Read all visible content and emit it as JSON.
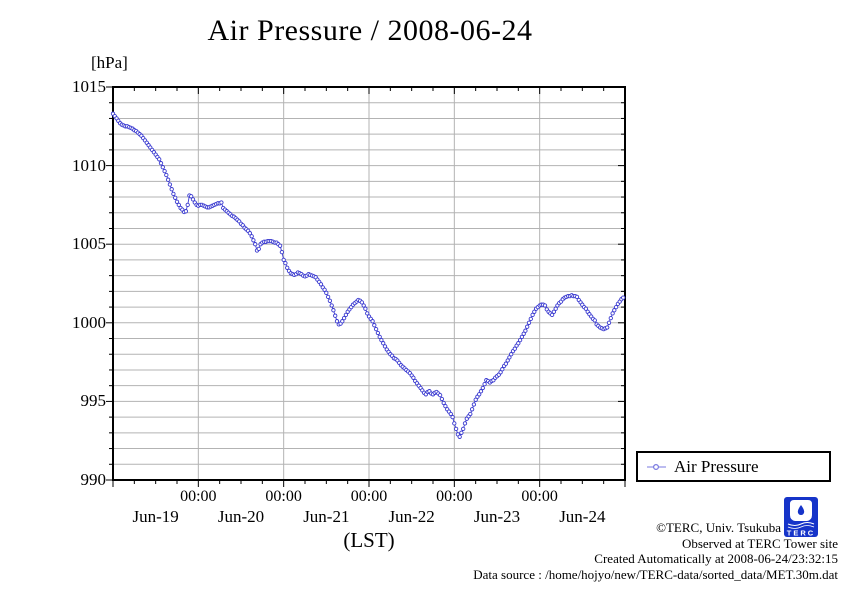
{
  "title": "Air Pressure / 2008-06-24",
  "y_unit_label": "[hPa]",
  "x_axis_label": "(LST)",
  "legend": {
    "label": "Air Pressure"
  },
  "footer": {
    "copyright": "©TERC, Univ. Tsukuba",
    "observed": "Observed at TERC Tower site",
    "created": "Created Automatically at 2008-06-24/23:32:15",
    "datasource": "Data source : /home/hojyo/new/TERC-data/sorted_data/MET.30m.dat"
  },
  "logo": {
    "text": "TERC",
    "color": "#1634c9"
  },
  "colors": {
    "series": "#3a3ad0",
    "legend_marker": "#7878e0",
    "grid": "#b3b3b3",
    "axis": "#000000"
  },
  "chart_data": {
    "type": "line",
    "title": "Air Pressure / 2008-06-24",
    "xlabel": "(LST)",
    "ylabel": "[hPa]",
    "ylim": [
      990,
      1015
    ],
    "y_major_ticks": [
      990,
      995,
      1000,
      1005,
      1010,
      1015
    ],
    "y_minor_step_hpa": 1,
    "x_hours_total": 144,
    "x_minor_tick_hours": 6,
    "x_major_tick_hours": 24,
    "x_midnight_label": "00:00",
    "x_day_labels": [
      "Jun-19",
      "Jun-20",
      "Jun-21",
      "Jun-22",
      "Jun-23",
      "Jun-24"
    ],
    "grid": true,
    "legend_position": "outside-bottom-right",
    "marker": "open-circle",
    "series": [
      {
        "name": "Air Pressure",
        "start_hour": 0,
        "step_hours": 0.5,
        "values": [
          1013.3,
          1013.15,
          1013.0,
          1012.85,
          1012.7,
          1012.6,
          1012.55,
          1012.5,
          1012.5,
          1012.45,
          1012.4,
          1012.35,
          1012.25,
          1012.2,
          1012.1,
          1012.0,
          1011.9,
          1011.75,
          1011.6,
          1011.45,
          1011.3,
          1011.15,
          1011.0,
          1010.85,
          1010.7,
          1010.55,
          1010.4,
          1010.15,
          1009.9,
          1009.65,
          1009.4,
          1009.1,
          1008.8,
          1008.5,
          1008.2,
          1007.95,
          1007.7,
          1007.5,
          1007.3,
          1007.2,
          1007.05,
          1007.1,
          1007.5,
          1008.1,
          1008.05,
          1007.85,
          1007.65,
          1007.5,
          1007.45,
          1007.5,
          1007.5,
          1007.45,
          1007.4,
          1007.35,
          1007.35,
          1007.4,
          1007.45,
          1007.5,
          1007.55,
          1007.6,
          1007.6,
          1007.65,
          1007.3,
          1007.2,
          1007.1,
          1007.0,
          1006.9,
          1006.8,
          1006.75,
          1006.65,
          1006.55,
          1006.45,
          1006.3,
          1006.2,
          1006.05,
          1005.95,
          1005.85,
          1005.7,
          1005.5,
          1005.25,
          1005.0,
          1004.6,
          1004.7,
          1005.0,
          1005.1,
          1005.15,
          1005.15,
          1005.2,
          1005.2,
          1005.2,
          1005.15,
          1005.1,
          1005.1,
          1005.0,
          1004.9,
          1004.5,
          1004.0,
          1003.8,
          1003.5,
          1003.3,
          1003.15,
          1003.1,
          1003.05,
          1003.1,
          1003.2,
          1003.15,
          1003.1,
          1003.0,
          1002.95,
          1003.0,
          1003.1,
          1003.05,
          1003.0,
          1002.95,
          1002.9,
          1002.75,
          1002.6,
          1002.45,
          1002.25,
          1002.1,
          1001.9,
          1001.65,
          1001.4,
          1001.1,
          1000.8,
          1000.45,
          1000.1,
          999.9,
          999.95,
          1000.1,
          1000.3,
          1000.5,
          1000.7,
          1000.85,
          1001.0,
          1001.15,
          1001.25,
          1001.35,
          1001.45,
          1001.4,
          1001.3,
          1001.1,
          1000.9,
          1000.6,
          1000.4,
          1000.25,
          1000.1,
          999.85,
          999.6,
          999.35,
          999.1,
          998.9,
          998.7,
          998.5,
          998.3,
          998.15,
          998.0,
          997.9,
          997.75,
          997.7,
          997.6,
          997.45,
          997.3,
          997.2,
          997.1,
          997.0,
          996.9,
          996.8,
          996.65,
          996.5,
          996.3,
          996.15,
          996.0,
          995.85,
          995.7,
          995.55,
          995.45,
          995.6,
          995.65,
          995.5,
          995.45,
          995.55,
          995.6,
          995.5,
          995.4,
          995.15,
          994.9,
          994.7,
          994.5,
          994.35,
          994.2,
          994.0,
          993.6,
          993.25,
          992.9,
          992.75,
          993.0,
          993.25,
          993.6,
          993.9,
          994.05,
          994.2,
          994.5,
          994.8,
          995.1,
          995.3,
          995.45,
          995.65,
          995.85,
          996.1,
          996.35,
          996.3,
          996.2,
          996.3,
          996.35,
          996.5,
          996.6,
          996.7,
          996.85,
          997.05,
          997.25,
          997.4,
          997.6,
          997.8,
          998.0,
          998.2,
          998.35,
          998.55,
          998.7,
          998.9,
          999.1,
          999.3,
          999.5,
          999.75,
          1000.0,
          1000.25,
          1000.5,
          1000.7,
          1000.9,
          1001.0,
          1001.1,
          1001.15,
          1001.15,
          1001.1,
          1000.85,
          1000.7,
          1000.6,
          1000.5,
          1000.7,
          1000.9,
          1001.1,
          1001.25,
          1001.35,
          1001.5,
          1001.6,
          1001.65,
          1001.7,
          1001.7,
          1001.75,
          1001.7,
          1001.7,
          1001.65,
          1001.45,
          1001.3,
          1001.15,
          1001.0,
          1000.9,
          1000.7,
          1000.55,
          1000.4,
          1000.25,
          1000.15,
          999.9,
          999.8,
          999.7,
          999.65,
          999.6,
          999.65,
          999.7,
          1000.0,
          1000.3,
          1000.6,
          1000.8,
          1001.0,
          1001.2,
          1001.35,
          1001.5,
          1001.6
        ]
      }
    ]
  }
}
